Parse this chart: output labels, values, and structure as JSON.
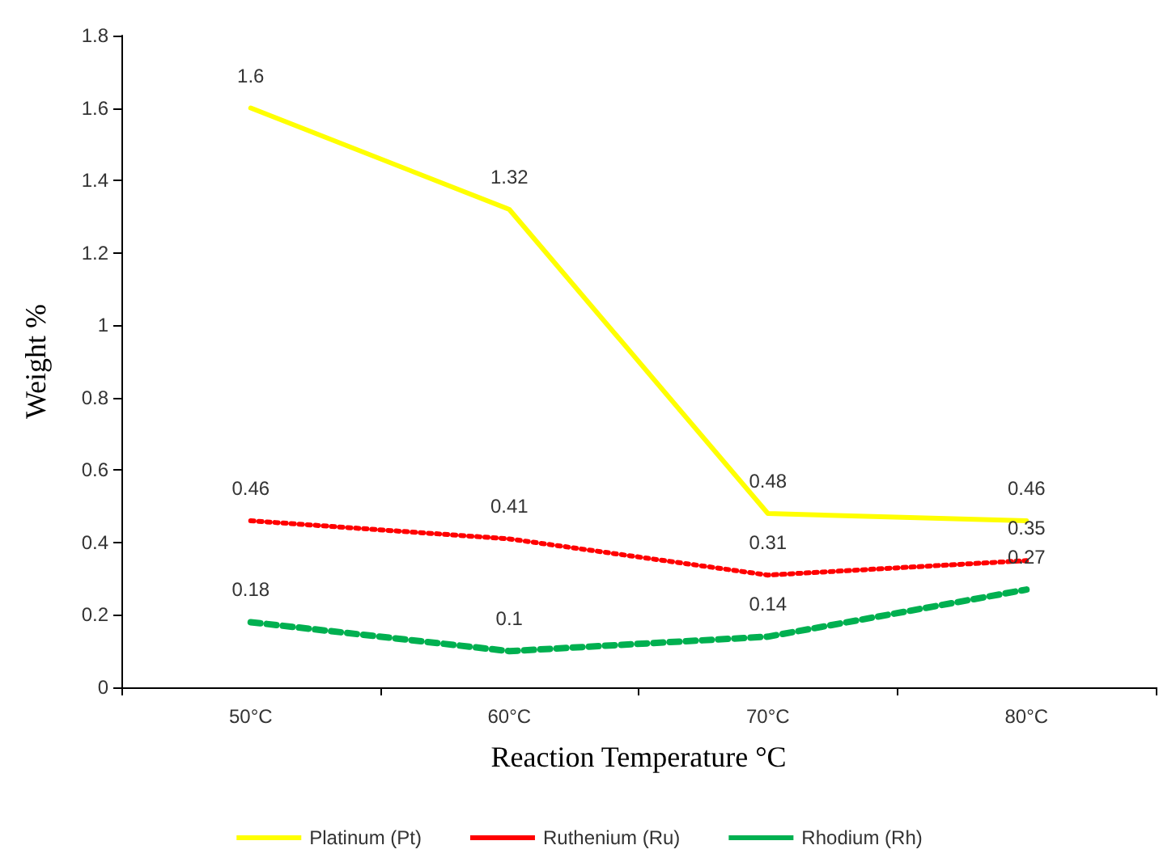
{
  "chart_data": {
    "type": "line",
    "xlabel": "Reaction Temperature °C",
    "ylabel": "Weight %",
    "categories": [
      "50°C",
      "60°C",
      "70°C",
      "80°C"
    ],
    "series": [
      {
        "name": "Platinum (Pt)",
        "color": "#ffff00",
        "line_style": "solid",
        "values": [
          1.6,
          1.32,
          0.48,
          0.46
        ]
      },
      {
        "name": "Ruthenium (Ru)",
        "color": "#ff0000",
        "line_style": "dotted",
        "values": [
          0.46,
          0.41,
          0.31,
          0.35
        ]
      },
      {
        "name": "Rhodium (Rh)",
        "color": "#00b050",
        "line_style": "dashed",
        "values": [
          0.18,
          0.1,
          0.14,
          0.27
        ]
      }
    ],
    "ylim": [
      0,
      1.8
    ],
    "yticks": [
      0,
      0.2,
      0.4,
      0.6,
      0.8,
      1,
      1.2,
      1.4,
      1.6,
      1.8
    ],
    "grid": false,
    "legend": "bottom",
    "marker": "none",
    "data_labels": true
  }
}
